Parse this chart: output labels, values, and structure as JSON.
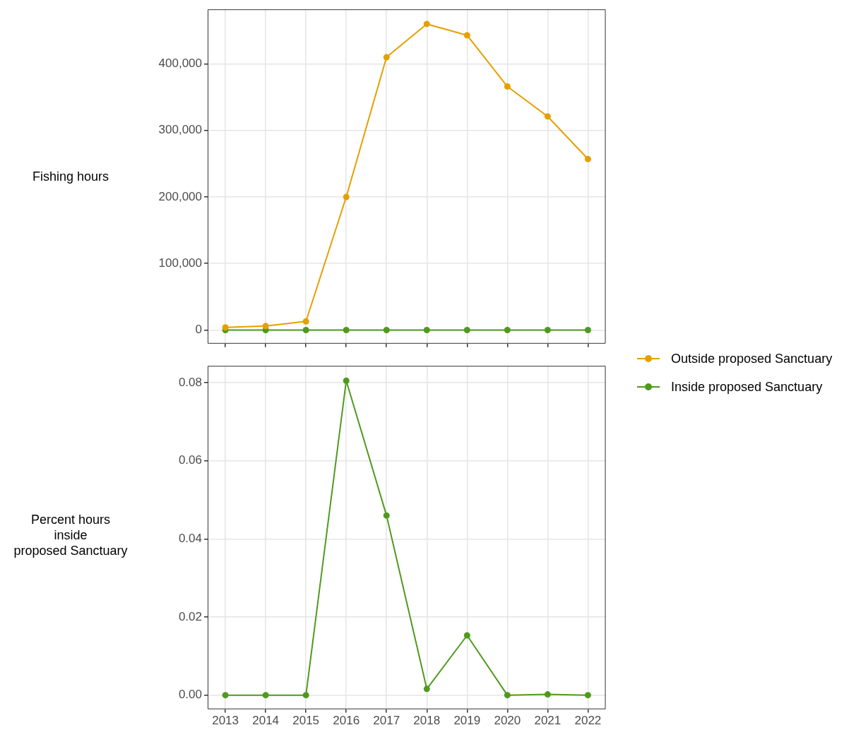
{
  "chart_data": [
    {
      "type": "line",
      "ylabel": "Fishing hours",
      "x": [
        2013,
        2014,
        2015,
        2016,
        2017,
        2018,
        2019,
        2020,
        2021,
        2022
      ],
      "series": [
        {
          "name": "Outside proposed Sanctuary",
          "color": "#e69f00",
          "values": [
            4000,
            6000,
            13000,
            200000,
            410000,
            460000,
            443000,
            366000,
            321000,
            257000
          ]
        },
        {
          "name": "Inside proposed Sanctuary",
          "color": "#4f9a1d",
          "values": [
            0,
            0,
            0,
            0,
            0,
            0,
            0,
            0,
            0,
            0
          ]
        }
      ],
      "xlim": [
        2012.56,
        2022.44
      ],
      "xticks": [
        2013,
        2014,
        2015,
        2016,
        2017,
        2018,
        2019,
        2020,
        2021,
        2022
      ],
      "ylim": [
        -20500,
        482000
      ],
      "yticks": [
        {
          "value": 0,
          "label": "0"
        },
        {
          "value": 100000,
          "label": "100,000"
        },
        {
          "value": 200000,
          "label": "200,000"
        },
        {
          "value": 300000,
          "label": "300,000"
        },
        {
          "value": 400000,
          "label": "400,000"
        }
      ],
      "tick_labels": "y",
      "grid": true,
      "legend": "right",
      "marker": "circle",
      "line_style": "solid"
    },
    {
      "type": "line",
      "ylabel": "Percent hours\ninside\nproposed Sanctuary",
      "x": [
        2013,
        2014,
        2015,
        2016,
        2017,
        2018,
        2019,
        2020,
        2021,
        2022
      ],
      "series": [
        {
          "color": "#4f9a1d",
          "values": [
            0,
            0,
            0,
            0.0805,
            0.046,
            0.0016,
            0.0153,
            0,
            0.0002,
            0
          ]
        }
      ],
      "xlim": [
        2012.56,
        2022.44
      ],
      "xticks": [
        2013,
        2014,
        2015,
        2016,
        2017,
        2018,
        2019,
        2020,
        2021,
        2022
      ],
      "ylim": [
        -0.0036,
        0.0843
      ],
      "yticks": [
        {
          "value": 0,
          "label": "0.00"
        },
        {
          "value": 0.02,
          "label": "0.02"
        },
        {
          "value": 0.04,
          "label": "0.04"
        },
        {
          "value": 0.06,
          "label": "0.06"
        },
        {
          "value": 0.08,
          "label": "0.08"
        }
      ],
      "grid": true,
      "marker": "circle",
      "line_style": "solid"
    }
  ]
}
